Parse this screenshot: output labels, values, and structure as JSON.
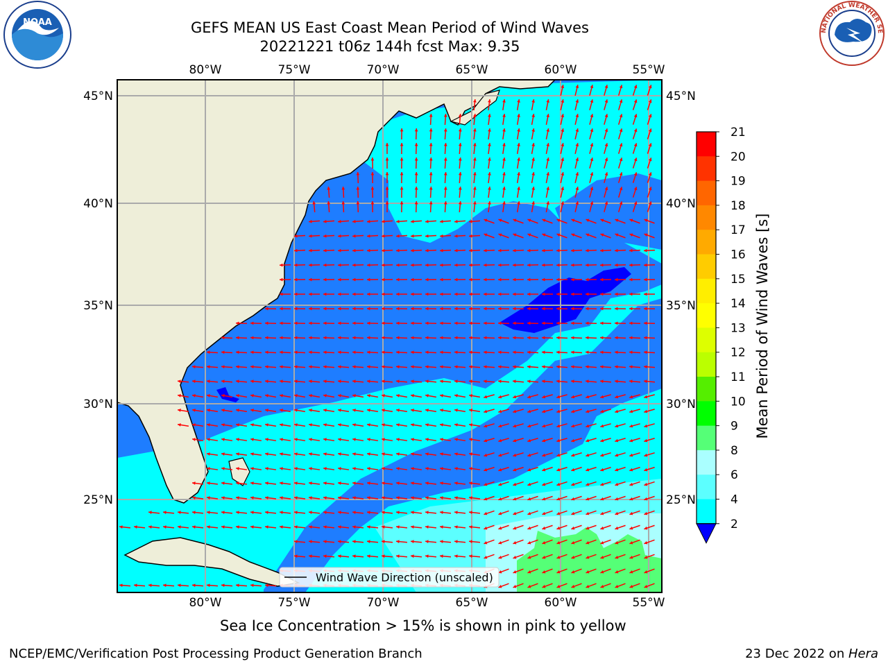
{
  "header": {
    "title_line1": "GEFS MEAN US East Coast Mean Period of Wind Waves",
    "title_line2": "20221221 t06z 144h fcst   Max: 9.35"
  },
  "logos": {
    "left_text": "NOAA",
    "right_text": "NATIONAL WEATHER SERVICE"
  },
  "map": {
    "lon_labels": [
      "80°W",
      "75°W",
      "70°W",
      "65°W",
      "60°W",
      "55°W"
    ],
    "lat_labels": [
      "45°N",
      "40°N",
      "35°N",
      "30°N",
      "25°N"
    ],
    "legend_label": "Wind Wave Direction (unscaled)",
    "colors": {
      "land": "#eeeed9",
      "ocean_low": "#0055ff",
      "ocean_2_4": "#1e7dff",
      "ocean_4_6": "#00ffff",
      "ocean_6_8": "#5cffff",
      "ocean_8_9": "#aaffff",
      "ocean_9_10": "#55ff77",
      "arrow": "#ff0000",
      "grid": "#aaaaaa"
    }
  },
  "colorbar": {
    "label": "Mean Period of Wind Waves [s]",
    "ticks": [
      "21",
      "20",
      "19",
      "18",
      "17",
      "16",
      "15",
      "14",
      "13",
      "12",
      "11",
      "10",
      "9",
      "8",
      "6",
      "4",
      "2"
    ],
    "colors": [
      "#ff0000",
      "#ff3300",
      "#ff6600",
      "#ff8800",
      "#ffaa00",
      "#ffcc00",
      "#ffee00",
      "#ffff00",
      "#ddff00",
      "#bbff00",
      "#55ee00",
      "#00ff00",
      "#55ff77",
      "#aaffff",
      "#5cffff",
      "#00ffff",
      "#1e7dff",
      "#0000ff"
    ]
  },
  "caption": "Sea Ice Concentration > 15% is shown in pink to yellow",
  "footer": {
    "left": "NCEP/EMC/Verification Post Processing Product Generation Branch",
    "right_date": "23 Dec 2022 on ",
    "right_machine": "Hera"
  }
}
